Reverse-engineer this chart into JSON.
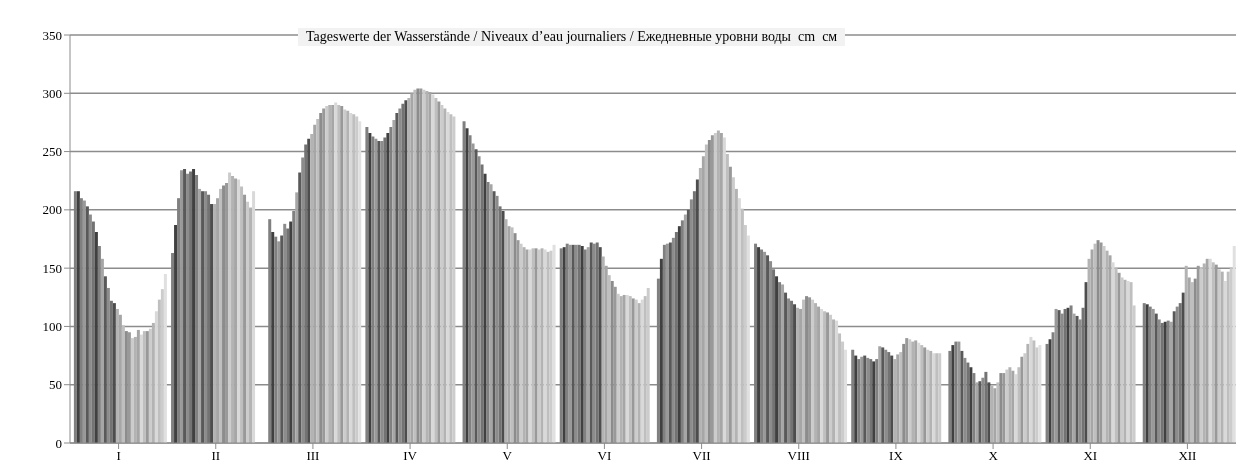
{
  "chart_data": {
    "type": "bar",
    "title": "Tageswerte der Wasserstände / Niveaux d’eau journaliers / Ежедневные уровни воды  cm  см",
    "categories": [
      "I",
      "II",
      "III",
      "IV",
      "V",
      "VI",
      "VII",
      "VIII",
      "IX",
      "X",
      "XI",
      "XII"
    ],
    "series": [
      {
        "color": "#808080",
        "values": [
          216,
          163,
          192,
          271,
          276,
          167,
          141,
          171,
          80,
          79,
          85,
          120
        ]
      },
      {
        "color": "#404040",
        "values": [
          216,
          187,
          181,
          266,
          270,
          168,
          158,
          168,
          75,
          84,
          89,
          119
        ]
      },
      {
        "color": "#808080",
        "values": [
          210,
          210,
          177,
          263,
          264,
          171,
          170,
          166,
          72,
          87,
          95,
          117
        ]
      },
      {
        "color": "#999999",
        "values": [
          208,
          234,
          173,
          261,
          257,
          170,
          171,
          164,
          74,
          87,
          115,
          115
        ]
      },
      {
        "color": "#595959",
        "values": [
          203,
          235,
          178,
          259,
          252,
          170,
          172,
          161,
          75,
          79,
          114,
          111
        ]
      },
      {
        "color": "#8c8c8c",
        "values": [
          196,
          231,
          188,
          259,
          246,
          170,
          176,
          156,
          73,
          73,
          111,
          106
        ]
      },
      {
        "color": "#737373",
        "values": [
          190,
          233,
          184,
          262,
          239,
          170,
          181,
          149,
          72,
          69,
          115,
          103
        ]
      },
      {
        "color": "#404040",
        "values": [
          181,
          235,
          190,
          266,
          231,
          169,
          186,
          143,
          70,
          65,
          116,
          104
        ]
      },
      {
        "color": "#808080",
        "values": [
          169,
          230,
          199,
          271,
          224,
          166,
          191,
          138,
          72,
          60,
          118,
          105
        ]
      },
      {
        "color": "#a6a6a6",
        "values": [
          158,
          218,
          215,
          277,
          222,
          168,
          196,
          136,
          83,
          52,
          111,
          104
        ]
      },
      {
        "color": "#595959",
        "values": [
          143,
          216,
          232,
          283,
          216,
          172,
          200,
          129,
          82,
          53,
          109,
          113
        ]
      },
      {
        "color": "#8c8c8c",
        "values": [
          133,
          216,
          245,
          287,
          212,
          171,
          209,
          124,
          80,
          56,
          106,
          117
        ]
      },
      {
        "color": "#737373",
        "values": [
          122,
          213,
          256,
          291,
          203,
          172,
          216,
          122,
          78,
          61,
          116,
          120
        ]
      },
      {
        "color": "#4d4d4d",
        "values": [
          120,
          205,
          261,
          294,
          199,
          168,
          226,
          119,
          75,
          52,
          138,
          129
        ]
      },
      {
        "color": "#b3b3b3",
        "values": [
          115,
          205,
          265,
          296,
          192,
          160,
          236,
          116,
          72,
          49,
          158,
          152
        ]
      },
      {
        "color": "#a6a6a6",
        "values": [
          110,
          210,
          273,
          300,
          186,
          152,
          246,
          115,
          76,
          47,
          166,
          142
        ]
      },
      {
        "color": "#bfbfbf",
        "values": [
          101,
          218,
          278,
          303,
          185,
          144,
          256,
          123,
          78,
          52,
          171,
          138
        ]
      },
      {
        "color": "#8c8c8c",
        "values": [
          96,
          221,
          283,
          304,
          180,
          139,
          260,
          126,
          85,
          60,
          174,
          141
        ]
      },
      {
        "color": "#999999",
        "values": [
          95,
          223,
          287,
          304,
          174,
          134,
          264,
          125,
          90,
          60,
          172,
          152
        ]
      },
      {
        "color": "#cccccc",
        "values": [
          90,
          232,
          289,
          303,
          171,
          128,
          266,
          123,
          89,
          63,
          169,
          150
        ]
      },
      {
        "color": "#b3b3b3",
        "values": [
          91,
          229,
          290,
          302,
          168,
          126,
          268,
          120,
          87,
          65,
          165,
          154
        ]
      },
      {
        "color": "#a6a6a6",
        "values": [
          97,
          227,
          290,
          301,
          166,
          127,
          266,
          117,
          88,
          62,
          161,
          158
        ]
      },
      {
        "color": "#d9d9d9",
        "values": [
          93,
          226,
          292,
          299,
          166,
          127,
          262,
          115,
          86,
          59,
          155,
          158
        ]
      },
      {
        "color": "#bfbfbf",
        "values": [
          96,
          220,
          290,
          296,
          167,
          126,
          248,
          113,
          84,
          65,
          150,
          155
        ]
      },
      {
        "color": "#999999",
        "values": [
          96,
          213,
          289,
          293,
          167,
          124,
          237,
          112,
          82,
          74,
          146,
          153
        ]
      },
      {
        "color": "#cccccc",
        "values": [
          98,
          207,
          286,
          290,
          166,
          123,
          228,
          110,
          80,
          77,
          142,
          149
        ]
      },
      {
        "color": "#b3b3b3",
        "values": [
          103,
          202,
          285,
          287,
          167,
          120,
          218,
          106,
          79,
          85,
          140,
          147
        ]
      },
      {
        "color": "#d9d9d9",
        "values": [
          113,
          216,
          283,
          284,
          166,
          123,
          210,
          105,
          77,
          91,
          139,
          139
        ]
      },
      {
        "color": "#bfbfbf",
        "values": [
          123,
          null,
          282,
          282,
          164,
          126,
          201,
          94,
          77,
          88,
          138,
          147
        ]
      },
      {
        "color": "#cccccc",
        "values": [
          132,
          null,
          280,
          280,
          165,
          133,
          187,
          87,
          77,
          82,
          118,
          150
        ]
      },
      {
        "color": "#e0e0e0",
        "values": [
          145,
          null,
          276,
          null,
          170,
          null,
          178,
          80,
          null,
          84,
          null,
          169
        ]
      }
    ],
    "ylim": [
      0,
      350
    ],
    "yticks": [
      0,
      50,
      100,
      150,
      200,
      250,
      300,
      350
    ],
    "grid": "y"
  }
}
